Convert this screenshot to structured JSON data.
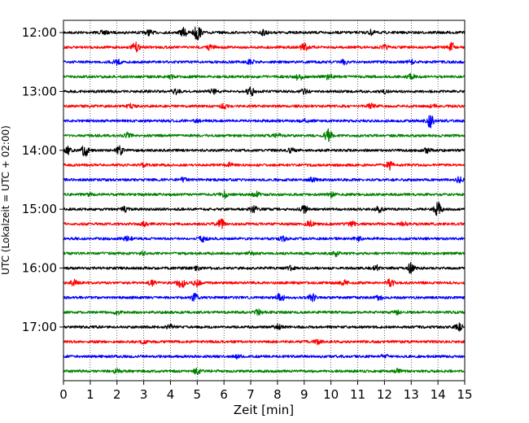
{
  "chart_data": {
    "type": "line",
    "title": "",
    "xlabel": "Zeit  [min]",
    "ylabel": "UTC (Lokalzeit = UTC + 02:00)",
    "xlim": [
      0,
      15
    ],
    "x_ticks": [
      "0",
      "1",
      "2",
      "3",
      "4",
      "5",
      "6",
      "7",
      "8",
      "9",
      "10",
      "11",
      "12",
      "13",
      "14",
      "15"
    ],
    "y_ticks": [
      "12:00",
      "13:00",
      "14:00",
      "15:00",
      "16:00",
      "17:00"
    ],
    "grid": "vertical dotted at each minute",
    "legend": "none",
    "trace_interval_min": 15,
    "traces": [
      {
        "start": "12:00",
        "color": "#000000",
        "bursts": [
          [
            5.0,
            10
          ],
          [
            4.5,
            5
          ],
          [
            3.2,
            3
          ],
          [
            7.5,
            3
          ],
          [
            11.5,
            2.5
          ],
          [
            1.5,
            2
          ]
        ]
      },
      {
        "start": "12:15",
        "color": "#ff0000",
        "bursts": [
          [
            2.7,
            5
          ],
          [
            9.0,
            5
          ],
          [
            14.5,
            5
          ],
          [
            5.5,
            3
          ],
          [
            12.0,
            2.5
          ]
        ]
      },
      {
        "start": "12:30",
        "color": "#0000ff",
        "bursts": [
          [
            2.0,
            3
          ],
          [
            7.0,
            2.5
          ],
          [
            10.5,
            2.5
          ],
          [
            13.0,
            2
          ]
        ]
      },
      {
        "start": "12:45",
        "color": "#008000",
        "bursts": [
          [
            8.8,
            4
          ],
          [
            9.9,
            3
          ],
          [
            13.0,
            3
          ],
          [
            4.0,
            2
          ]
        ]
      },
      {
        "start": "13:00",
        "color": "#000000",
        "bursts": [
          [
            7.0,
            5
          ],
          [
            4.2,
            3
          ],
          [
            5.6,
            3
          ],
          [
            9.0,
            2.5
          ],
          [
            12.0,
            2
          ]
        ]
      },
      {
        "start": "13:15",
        "color": "#ff0000",
        "bursts": [
          [
            11.5,
            4
          ],
          [
            6.0,
            2.5
          ],
          [
            2.5,
            2
          ],
          [
            13.8,
            2
          ]
        ]
      },
      {
        "start": "13:30",
        "color": "#0000ff",
        "bursts": [
          [
            13.7,
            8
          ],
          [
            9.0,
            2.5
          ],
          [
            5.0,
            2
          ]
        ]
      },
      {
        "start": "13:45",
        "color": "#008000",
        "bursts": [
          [
            9.9,
            7
          ],
          [
            2.4,
            3
          ],
          [
            8.0,
            2.5
          ]
        ]
      },
      {
        "start": "14:00",
        "color": "#000000",
        "bursts": [
          [
            0.8,
            7
          ],
          [
            2.1,
            5
          ],
          [
            0.2,
            4
          ],
          [
            8.5,
            3
          ],
          [
            13.6,
            2.5
          ]
        ]
      },
      {
        "start": "14:15",
        "color": "#ff0000",
        "bursts": [
          [
            12.2,
            5
          ],
          [
            6.2,
            2.5
          ],
          [
            3.0,
            2
          ]
        ]
      },
      {
        "start": "14:30",
        "color": "#0000ff",
        "bursts": [
          [
            14.8,
            3
          ],
          [
            4.5,
            2.5
          ],
          [
            9.3,
            2.5
          ]
        ]
      },
      {
        "start": "14:45",
        "color": "#008000",
        "bursts": [
          [
            6.0,
            4
          ],
          [
            7.2,
            3
          ],
          [
            10.0,
            2.5
          ],
          [
            1.0,
            2
          ]
        ]
      },
      {
        "start": "15:00",
        "color": "#000000",
        "bursts": [
          [
            14.0,
            8
          ],
          [
            9.0,
            4
          ],
          [
            7.1,
            4
          ],
          [
            11.8,
            3
          ],
          [
            2.3,
            2.5
          ]
        ]
      },
      {
        "start": "15:15",
        "color": "#ff0000",
        "bursts": [
          [
            5.9,
            6
          ],
          [
            9.2,
            4
          ],
          [
            10.8,
            3
          ],
          [
            12.7,
            2.5
          ],
          [
            3.0,
            2
          ]
        ]
      },
      {
        "start": "15:30",
        "color": "#0000ff",
        "bursts": [
          [
            2.4,
            3
          ],
          [
            5.2,
            3
          ],
          [
            8.2,
            2.5
          ],
          [
            11.0,
            2.5
          ]
        ]
      },
      {
        "start": "15:45",
        "color": "#008000",
        "bursts": [
          [
            10.2,
            3
          ],
          [
            3.0,
            2
          ],
          [
            7.0,
            2
          ]
        ]
      },
      {
        "start": "16:00",
        "color": "#000000",
        "bursts": [
          [
            13.0,
            6
          ],
          [
            11.7,
            3
          ],
          [
            5.0,
            2
          ],
          [
            8.5,
            2
          ]
        ]
      },
      {
        "start": "16:15",
        "color": "#ff0000",
        "bursts": [
          [
            4.4,
            6
          ],
          [
            5.0,
            4.5
          ],
          [
            12.2,
            5
          ],
          [
            3.3,
            3
          ],
          [
            0.4,
            3
          ],
          [
            10.5,
            2.5
          ]
        ]
      },
      {
        "start": "16:30",
        "color": "#0000ff",
        "bursts": [
          [
            8.1,
            5
          ],
          [
            9.3,
            4
          ],
          [
            4.9,
            4
          ],
          [
            11.8,
            2.5
          ]
        ]
      },
      {
        "start": "16:45",
        "color": "#008000",
        "bursts": [
          [
            7.3,
            3
          ],
          [
            2.0,
            2
          ],
          [
            12.5,
            2
          ]
        ]
      },
      {
        "start": "17:00",
        "color": "#000000",
        "bursts": [
          [
            14.8,
            4
          ],
          [
            8.0,
            2.5
          ],
          [
            4.0,
            2
          ]
        ]
      },
      {
        "start": "17:15",
        "color": "#ff0000",
        "bursts": [
          [
            9.5,
            2.5
          ],
          [
            3.0,
            2
          ]
        ]
      },
      {
        "start": "17:30",
        "color": "#0000ff",
        "bursts": [
          [
            6.5,
            2.5
          ],
          [
            12.0,
            2
          ]
        ]
      },
      {
        "start": "17:45",
        "color": "#008000",
        "bursts": [
          [
            5.0,
            3
          ],
          [
            12.5,
            2.5
          ],
          [
            2.0,
            2
          ]
        ]
      }
    ]
  }
}
